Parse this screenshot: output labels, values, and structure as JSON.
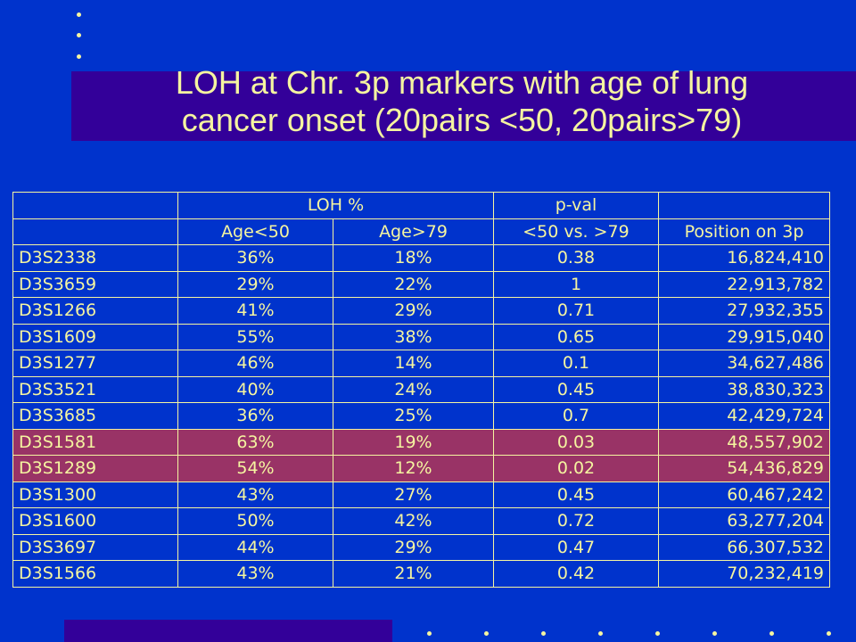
{
  "title": {
    "line1": "LOH at Chr. 3p markers with age of lung",
    "line2": "cancer onset (20pairs <50, 20pairs>79)"
  },
  "colors": {
    "background": "#0033cc",
    "bar": "#330099",
    "text": "#f5f5a0",
    "highlight": "#993366"
  },
  "table": {
    "header1": [
      "",
      "LOH %",
      "p-val",
      ""
    ],
    "header2": [
      "",
      "Age<50",
      "Age>79",
      "<50 vs. >79",
      "Position on 3p"
    ],
    "rows": [
      {
        "marker": "D3S2338",
        "age_lt50": "36%",
        "age_gt79": "18%",
        "pval": "0.38",
        "position": "16,824,410",
        "highlighted": false
      },
      {
        "marker": "D3S3659",
        "age_lt50": "29%",
        "age_gt79": "22%",
        "pval": "1",
        "position": "22,913,782",
        "highlighted": false
      },
      {
        "marker": "D3S1266",
        "age_lt50": "41%",
        "age_gt79": "29%",
        "pval": "0.71",
        "position": "27,932,355",
        "highlighted": false
      },
      {
        "marker": "D3S1609",
        "age_lt50": "55%",
        "age_gt79": "38%",
        "pval": "0.65",
        "position": "29,915,040",
        "highlighted": false
      },
      {
        "marker": "D3S1277",
        "age_lt50": "46%",
        "age_gt79": "14%",
        "pval": "0.1",
        "position": "34,627,486",
        "highlighted": false
      },
      {
        "marker": "D3S3521",
        "age_lt50": "40%",
        "age_gt79": "24%",
        "pval": "0.45",
        "position": "38,830,323",
        "highlighted": false
      },
      {
        "marker": "D3S3685",
        "age_lt50": "36%",
        "age_gt79": "25%",
        "pval": "0.7",
        "position": "42,429,724",
        "highlighted": false
      },
      {
        "marker": "D3S1581",
        "age_lt50": "63%",
        "age_gt79": "19%",
        "pval": "0.03",
        "position": "48,557,902",
        "highlighted": true
      },
      {
        "marker": "D3S1289",
        "age_lt50": "54%",
        "age_gt79": "12%",
        "pval": "0.02",
        "position": "54,436,829",
        "highlighted": true
      },
      {
        "marker": "D3S1300",
        "age_lt50": "43%",
        "age_gt79": "27%",
        "pval": "0.45",
        "position": "60,467,242",
        "highlighted": false
      },
      {
        "marker": "D3S1600",
        "age_lt50": "50%",
        "age_gt79": "42%",
        "pval": "0.72",
        "position": "63,277,204",
        "highlighted": false
      },
      {
        "marker": "D3S3697",
        "age_lt50": "44%",
        "age_gt79": "29%",
        "pval": "0.47",
        "position": "66,307,532",
        "highlighted": false
      },
      {
        "marker": "D3S1566",
        "age_lt50": "43%",
        "age_gt79": "21%",
        "pval": "0.42",
        "position": "70,232,419",
        "highlighted": false
      }
    ]
  }
}
